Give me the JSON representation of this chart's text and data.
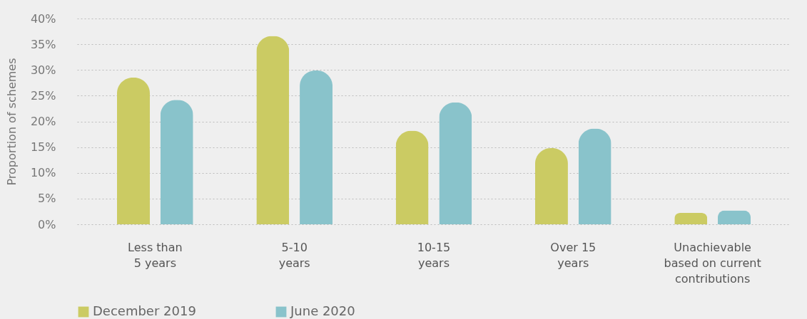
{
  "chart_data": {
    "type": "bar",
    "ylabel": "Proportion of schemes",
    "categories": [
      "Less than\n5 years",
      "5-10\nyears",
      "10-15\nyears",
      "Over 15\nyears",
      "Unachievable\nbased on current\ncontributions"
    ],
    "series": [
      {
        "name": "December 2019",
        "color": "#cbcb63",
        "values": [
          28.5,
          36.6,
          18.2,
          14.8,
          2.2
        ]
      },
      {
        "name": "June 2020",
        "color": "#89c3cb",
        "values": [
          24.2,
          29.9,
          23.7,
          18.6,
          2.7
        ]
      }
    ],
    "ylim": [
      0,
      40
    ],
    "yticks": [
      {
        "value": 0,
        "label": "0%"
      },
      {
        "value": 5,
        "label": "5%"
      },
      {
        "value": 10,
        "label": "10%"
      },
      {
        "value": 15,
        "label": "15%"
      },
      {
        "value": 20,
        "label": "20%"
      },
      {
        "value": 25,
        "label": "25%"
      },
      {
        "value": 30,
        "label": "30%"
      },
      {
        "value": 35,
        "label": "35%"
      },
      {
        "value": 40,
        "label": "40%"
      }
    ],
    "grid": "y",
    "legend": "bottom left"
  }
}
